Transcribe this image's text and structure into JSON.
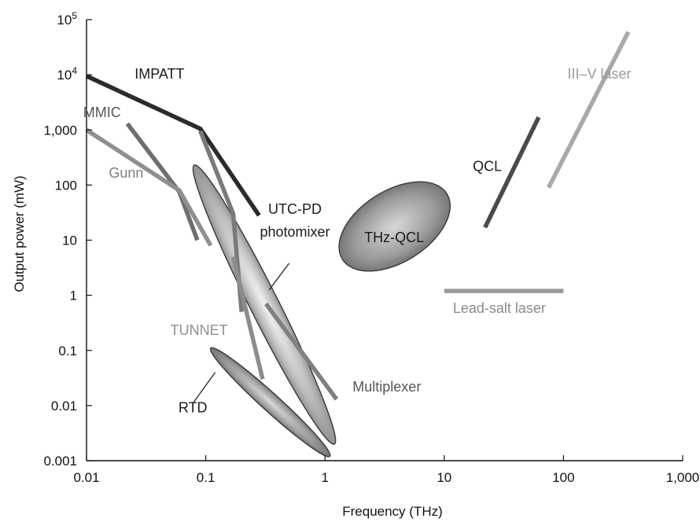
{
  "chart_data": {
    "type": "line",
    "xlabel": "Frequency (THz)",
    "ylabel": "Output power (mW)",
    "x_scale": "log",
    "y_scale": "log",
    "xlim": [
      0.01,
      1000
    ],
    "ylim": [
      0.001,
      100000
    ],
    "grid": false,
    "x_ticks": [
      {
        "value": 0.01,
        "label": "0.01"
      },
      {
        "value": 0.1,
        "label": "0.1"
      },
      {
        "value": 1,
        "label": "1"
      },
      {
        "value": 10,
        "label": "10"
      },
      {
        "value": 100,
        "label": "100"
      },
      {
        "value": 1000,
        "label": "1,000"
      }
    ],
    "y_ticks": [
      {
        "value": 0.001,
        "label": "0.001"
      },
      {
        "value": 0.01,
        "label": "0.01"
      },
      {
        "value": 0.1,
        "label": "0.1"
      },
      {
        "value": 1,
        "label": "1"
      },
      {
        "value": 10,
        "label": "10"
      },
      {
        "value": 100,
        "label": "100"
      },
      {
        "value": 1000,
        "label": "1,000"
      },
      {
        "value": 10000,
        "label": "10",
        "sup": "4"
      },
      {
        "value": 100000,
        "label": "10",
        "sup": "5"
      }
    ],
    "series": [
      {
        "name": "IMPATT",
        "kind": "line",
        "color": "#2b2b2b",
        "points": [
          [
            0.01,
            9500
          ],
          [
            0.09,
            1050
          ],
          [
            0.28,
            28
          ]
        ]
      },
      {
        "name": "MMIC",
        "kind": "line",
        "color": "#6e6e6e",
        "points": [
          [
            0.022,
            1300
          ],
          [
            0.06,
            75
          ],
          [
            0.085,
            10
          ]
        ]
      },
      {
        "name": "Gunn",
        "kind": "line",
        "color": "#8f8f8f",
        "points": [
          [
            0.01,
            1000
          ],
          [
            0.06,
            80
          ],
          [
            0.11,
            8
          ]
        ]
      },
      {
        "name": "TUNNET",
        "kind": "line",
        "color": "#7a7a7a",
        "points": [
          [
            0.09,
            950
          ],
          [
            0.17,
            30
          ],
          [
            0.2,
            0.5
          ]
        ]
      },
      {
        "name": "TUNNET",
        "kind": "line",
        "color": "#8c8c8c",
        "points": [
          [
            0.17,
            5
          ],
          [
            0.3,
            0.03
          ]
        ]
      },
      {
        "name": "Multiplexer",
        "kind": "line",
        "color": "#808080",
        "points": [
          [
            0.32,
            0.7
          ],
          [
            1.25,
            0.013
          ]
        ]
      },
      {
        "name": "QCL",
        "kind": "line",
        "color": "#4a4a4a",
        "points": [
          [
            22,
            17
          ],
          [
            62,
            1700
          ]
        ]
      },
      {
        "name": "III–V laser",
        "kind": "line",
        "color": "#a8a8a8",
        "points": [
          [
            75,
            90
          ],
          [
            350,
            60000
          ]
        ]
      },
      {
        "name": "Lead-salt laser",
        "kind": "line",
        "color": "#9a9a9a",
        "points": [
          [
            10,
            1.2
          ],
          [
            100,
            1.2
          ]
        ]
      },
      {
        "name": "UTC-PD photomixer",
        "kind": "ellipse",
        "points": [
          [
            0.08,
            230
          ],
          [
            1.2,
            0.002
          ]
        ],
        "semi_minor_x": 0.12
      },
      {
        "name": "RTD",
        "kind": "ellipse",
        "points": [
          [
            0.11,
            0.11
          ],
          [
            1.1,
            0.0012
          ]
        ],
        "semi_minor_x": 0.075
      },
      {
        "name": "THz-QCL",
        "kind": "ellipse",
        "points": [
          [
            1.4,
            4.5
          ],
          [
            10.5,
            70
          ]
        ],
        "semi_minor_x": 0.3
      }
    ],
    "annotations": [
      {
        "text": "IMPATT",
        "x": 0.041,
        "y": 8500,
        "color": "#1a1a1a"
      },
      {
        "text": "MMIC",
        "x": 0.0135,
        "y": 1700,
        "color": "#555555"
      },
      {
        "text": "Gunn",
        "x": 0.0215,
        "y": 135,
        "color": "#7f7f7f"
      },
      {
        "text": "UTC-PD",
        "x": 0.56,
        "y": 30,
        "color": "#1a1a1a"
      },
      {
        "text": "photomixer",
        "x": 0.56,
        "y": 11.5,
        "color": "#1a1a1a"
      },
      {
        "text": "THz-QCL",
        "x": 3.8,
        "y": 9.2,
        "color": "#1a1a1a"
      },
      {
        "text": "QCL",
        "x": 23,
        "y": 180,
        "color": "#1a1a1a"
      },
      {
        "text": "III–V laser",
        "x": 200,
        "y": 8500,
        "color": "#9a9a9a"
      },
      {
        "text": "Lead-salt laser",
        "x": 29,
        "y": 0.48,
        "color": "#8a8a8a"
      },
      {
        "text": "TUNNET",
        "x": 0.088,
        "y": 0.19,
        "color": "#909090"
      },
      {
        "text": "Multiplexer",
        "x": 3.3,
        "y": 0.018,
        "color": "#555555"
      },
      {
        "text": "RTD",
        "x": 0.078,
        "y": 0.0075,
        "color": "#1a1a1a"
      }
    ],
    "leaders": [
      {
        "from": [
          0.5,
          3.8
        ],
        "to": [
          0.34,
          1.25
        ]
      },
      {
        "from": [
          0.078,
          0.011
        ],
        "to": [
          0.12,
          0.04
        ]
      }
    ]
  }
}
